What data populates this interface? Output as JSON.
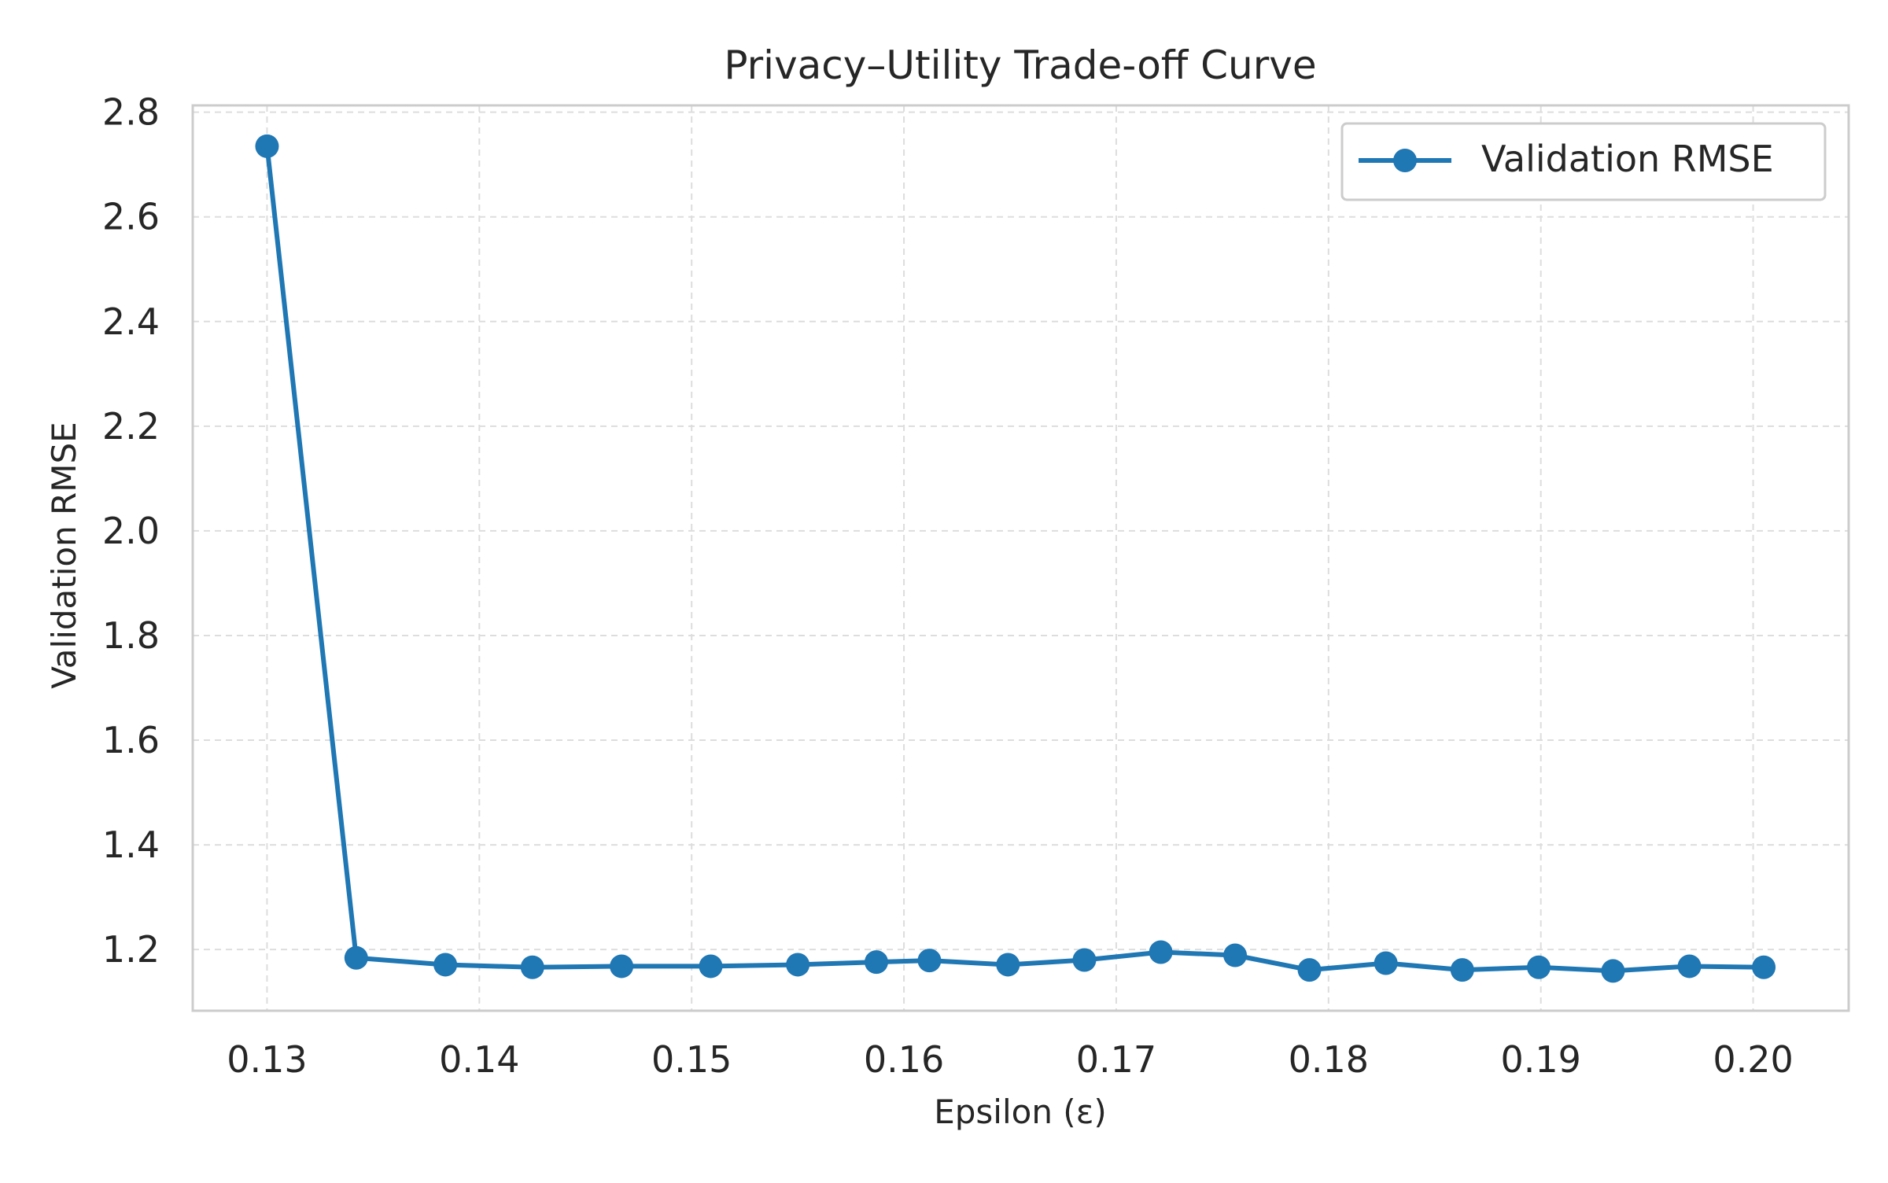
{
  "chart_data": {
    "type": "line",
    "title": "Privacy–Utility Trade-off Curve",
    "xlabel": "Epsilon (ε)",
    "ylabel": "Validation RMSE",
    "xlim": [
      0.1265,
      0.2045
    ],
    "ylim": [
      1.083,
      2.813
    ],
    "x_ticks": [
      0.13,
      0.14,
      0.15,
      0.16,
      0.17,
      0.18,
      0.19,
      0.2
    ],
    "x_tick_labels": [
      "0.13",
      "0.14",
      "0.15",
      "0.16",
      "0.17",
      "0.18",
      "0.19",
      "0.20"
    ],
    "y_ticks": [
      1.2,
      1.4,
      1.6,
      1.8,
      2.0,
      2.2,
      2.4,
      2.6,
      2.8
    ],
    "y_tick_labels": [
      "1.2",
      "1.4",
      "1.6",
      "1.8",
      "2.0",
      "2.2",
      "2.4",
      "2.6",
      "2.8"
    ],
    "grid": true,
    "legend_position": "top-right",
    "series": [
      {
        "name": "Validation RMSE",
        "color": "#1f77b4",
        "marker": "circle",
        "x": [
          0.13,
          0.1342,
          0.1384,
          0.1425,
          0.1467,
          0.1509,
          0.155,
          0.1587,
          0.1612,
          0.1649,
          0.1685,
          0.1721,
          0.1756,
          0.1791,
          0.1827,
          0.1863,
          0.1899,
          0.1934,
          0.197,
          0.2005
        ],
        "y": [
          2.735,
          1.184,
          1.171,
          1.166,
          1.168,
          1.168,
          1.171,
          1.176,
          1.179,
          1.171,
          1.18,
          1.195,
          1.189,
          1.161,
          1.174,
          1.161,
          1.166,
          1.159,
          1.168,
          1.166
        ]
      }
    ]
  }
}
